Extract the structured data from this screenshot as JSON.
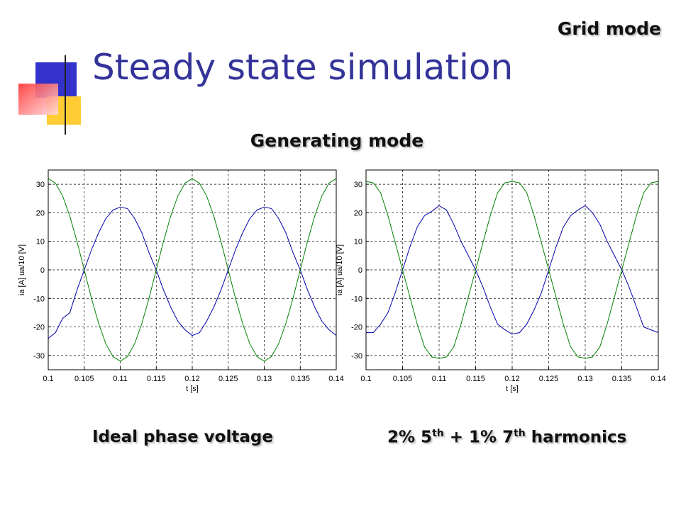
{
  "slide": {
    "title": "Steady state simulation",
    "corner_label": "Grid mode",
    "subtitle": "Generating mode"
  },
  "chart_data": [
    {
      "type": "line",
      "caption": [
        "Ideal phase voltage"
      ],
      "x_label": "t [s]",
      "y_label": "ia [A] ua/10 [V]",
      "xlim": [
        0.1,
        0.14
      ],
      "ylim": [
        -35,
        35
      ],
      "xticks": [
        0.1,
        0.105,
        0.11,
        0.115,
        0.12,
        0.125,
        0.13,
        0.135,
        0.14
      ],
      "yticks": [
        -30,
        -20,
        -10,
        0,
        10,
        20,
        30
      ],
      "grid": true,
      "x": [
        0.1,
        0.101,
        0.102,
        0.103,
        0.104,
        0.105,
        0.106,
        0.107,
        0.108,
        0.109,
        0.11,
        0.111,
        0.112,
        0.113,
        0.114,
        0.115,
        0.116,
        0.117,
        0.118,
        0.119,
        0.12,
        0.121,
        0.122,
        0.123,
        0.124,
        0.125,
        0.126,
        0.127,
        0.128,
        0.129,
        0.13,
        0.131,
        0.132,
        0.133,
        0.134,
        0.135,
        0.136,
        0.137,
        0.138,
        0.139,
        0.14
      ],
      "series": [
        {
          "name": "ia",
          "color": "#0000aa",
          "values": [
            -24,
            -22,
            -17,
            -15,
            -7,
            0,
            7,
            13,
            18,
            21,
            22,
            21.5,
            18,
            13,
            6,
            0,
            -7,
            -13,
            -18,
            -21,
            -23,
            -22,
            -18,
            -13,
            -7,
            0,
            7,
            13,
            18,
            21,
            22,
            21.5,
            18,
            13,
            6,
            0,
            -7,
            -13,
            -18,
            -21,
            -23
          ]
        },
        {
          "name": "ua/10",
          "color": "#008000",
          "values": [
            32,
            30.4,
            25.9,
            18.8,
            9.9,
            0,
            -9.9,
            -18.8,
            -25.9,
            -30.4,
            -32,
            -30.4,
            -25.9,
            -18.8,
            -9.9,
            0,
            9.9,
            18.8,
            25.9,
            30.4,
            32,
            30.4,
            25.9,
            18.8,
            9.9,
            0,
            -9.9,
            -18.8,
            -25.9,
            -30.4,
            -32,
            -30.4,
            -25.9,
            -18.8,
            -9.9,
            0,
            9.9,
            18.8,
            25.9,
            30.4,
            32
          ]
        }
      ]
    },
    {
      "type": "line",
      "caption": [
        "2% 5",
        "th",
        " + 1% 7",
        "th",
        " harmonics"
      ],
      "x_label": "t [s]",
      "y_label": "ia [A] ua/10 [V]",
      "xlim": [
        0.1,
        0.14
      ],
      "ylim": [
        -35,
        35
      ],
      "xticks": [
        0.1,
        0.105,
        0.11,
        0.115,
        0.12,
        0.125,
        0.13,
        0.135,
        0.14
      ],
      "yticks": [
        -30,
        -20,
        -10,
        0,
        10,
        20,
        30
      ],
      "grid": true,
      "x": [
        0.1,
        0.101,
        0.102,
        0.103,
        0.104,
        0.105,
        0.106,
        0.107,
        0.108,
        0.109,
        0.11,
        0.111,
        0.112,
        0.113,
        0.114,
        0.115,
        0.116,
        0.117,
        0.118,
        0.119,
        0.12,
        0.121,
        0.122,
        0.123,
        0.124,
        0.125,
        0.126,
        0.127,
        0.128,
        0.129,
        0.13,
        0.131,
        0.132,
        0.133,
        0.134,
        0.135,
        0.136,
        0.137,
        0.138,
        0.139,
        0.14
      ],
      "series": [
        {
          "name": "ia",
          "color": "#0000aa",
          "values": [
            -22,
            -22,
            -19,
            -15,
            -8,
            0,
            8,
            15,
            19,
            20.5,
            22.5,
            21,
            16,
            10,
            5,
            0,
            -6,
            -13,
            -19,
            -21,
            -22.5,
            -22,
            -19,
            -14,
            -8,
            0,
            8,
            15,
            19,
            21,
            22.5,
            20,
            16,
            10,
            5,
            0,
            -6,
            -13,
            -20,
            -21,
            -22
          ]
        },
        {
          "name": "ua/10",
          "color": "#008000",
          "values": [
            31,
            30.5,
            27,
            19,
            9.5,
            0,
            -9.5,
            -19,
            -27,
            -30.5,
            -31,
            -30.5,
            -27,
            -19,
            -9.5,
            0,
            9.5,
            19,
            27,
            30.5,
            31,
            30.5,
            27,
            19,
            9.5,
            0,
            -9.5,
            -19,
            -27,
            -30.5,
            -31,
            -30.5,
            -27,
            -19,
            -9.5,
            0,
            9.5,
            19,
            27,
            30.5,
            31
          ]
        }
      ]
    }
  ]
}
